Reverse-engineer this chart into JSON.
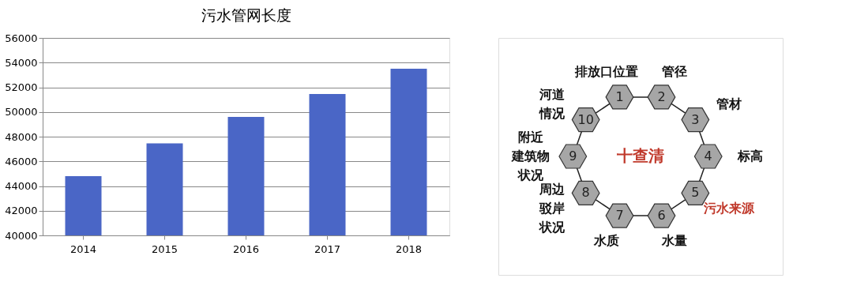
{
  "chart_data": [
    {
      "type": "bar",
      "title": "污水管网长度",
      "categories": [
        "2014",
        "2015",
        "2016",
        "2017",
        "2018"
      ],
      "values": [
        44800,
        47450,
        49600,
        51450,
        53500
      ],
      "color": "#4a66c6",
      "ylim": [
        40000,
        56000
      ],
      "yticks": [
        40000,
        42000,
        44000,
        46000,
        48000,
        50000,
        52000,
        54000,
        56000
      ],
      "grid": "y"
    },
    {
      "type": "other",
      "title": "十查清",
      "colors": [
        "#a6a6a6",
        "#a6a6a6",
        "#a6a6a6",
        "#a6a6a6",
        "#a6a6a6",
        "#a6a6a6",
        "#a6a6a6",
        "#a6a6a6",
        "#a6a6a6",
        "#a6a6a6"
      ],
      "categories": [
        "1",
        "2",
        "3",
        "4",
        "5",
        "6",
        "7",
        "8",
        "9",
        "10"
      ],
      "annotations": [
        "排放口位置",
        "管径",
        "管材",
        "标高",
        "污水来源",
        "水量",
        "水质",
        "周边",
        "驳岸",
        "状况",
        "附近",
        "建筑物",
        "状况",
        "河道",
        "情况"
      ]
    }
  ]
}
